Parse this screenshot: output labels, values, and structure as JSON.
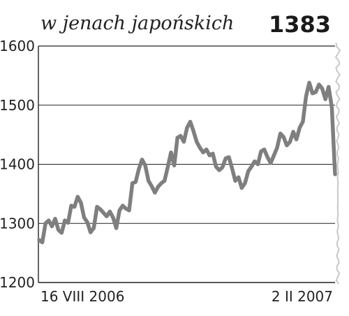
{
  "header": {
    "subtitle": "w jenach japońskich",
    "value": "1383"
  },
  "chart_data": {
    "type": "line",
    "title": "",
    "xlabel": "",
    "ylabel": "",
    "ylim": [
      1200,
      1600
    ],
    "yticks": [
      "1600",
      "1500",
      "1400",
      "1300",
      "1200"
    ],
    "xticks": [
      "16 VIII 2006",
      "2 II 2007"
    ],
    "grid": true,
    "series": [
      {
        "color": "#7f7f7f",
        "values": [
          1272,
          1268,
          1300,
          1305,
          1295,
          1308,
          1289,
          1284,
          1305,
          1301,
          1330,
          1328,
          1345,
          1335,
          1310,
          1302,
          1285,
          1292,
          1328,
          1324,
          1318,
          1312,
          1320,
          1310,
          1292,
          1322,
          1330,
          1325,
          1322,
          1368,
          1370,
          1392,
          1408,
          1398,
          1372,
          1363,
          1352,
          1362,
          1368,
          1372,
          1395,
          1420,
          1398,
          1445,
          1448,
          1438,
          1462,
          1472,
          1456,
          1438,
          1428,
          1420,
          1425,
          1415,
          1418,
          1396,
          1390,
          1395,
          1410,
          1412,
          1393,
          1372,
          1378,
          1360,
          1368,
          1388,
          1396,
          1405,
          1400,
          1422,
          1425,
          1412,
          1402,
          1415,
          1428,
          1452,
          1446,
          1432,
          1438,
          1455,
          1442,
          1462,
          1472,
          1515,
          1538,
          1520,
          1522,
          1535,
          1528,
          1510,
          1531,
          1496,
          1383
        ]
      }
    ]
  }
}
